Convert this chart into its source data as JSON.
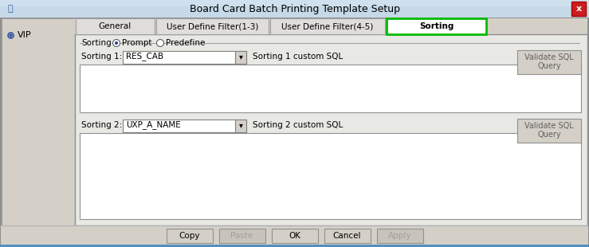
{
  "title": "Board Card Batch Printing Template Setup",
  "title_bar_color": "#c5d9e8",
  "title_text_color": "#000000",
  "close_btn_color": "#cc2020",
  "bg_color": "#d4d0c8",
  "tab_active": "Sorting",
  "tabs": [
    "General",
    "User Define Filter(1-3)",
    "User Define Filter(4-5)",
    "Sorting"
  ],
  "active_tab_border": "#00bb00",
  "left_panel_item": "VIP",
  "sorting_label": "Sorting",
  "radio1": "Prompt",
  "radio2": "Predefine",
  "sorting1_label": "Sorting 1:",
  "sorting1_value": "RES_CAB",
  "sorting1_custom": "Sorting 1 custom SQL",
  "sorting2_label": "Sorting 2:",
  "sorting2_value": "UXP_A_NAME",
  "sorting2_custom": "Sorting 2 custom SQL",
  "validate_btn_line1": "Validate SQL",
  "validate_btn_line2": "Query",
  "buttons": [
    "Copy",
    "Paste",
    "OK",
    "Cancel",
    "Apply"
  ],
  "btn_disabled": [
    "Paste",
    "Apply"
  ],
  "panel_bg": "#d4d0c8",
  "content_bg": "#e8e8e4",
  "white": "#ffffff",
  "border_dark": "#808080",
  "border_light": "#c0c0c0"
}
